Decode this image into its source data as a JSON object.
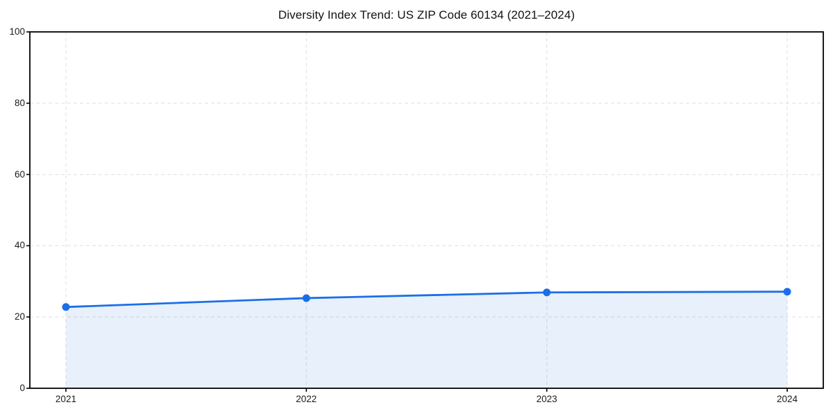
{
  "chart_data": {
    "type": "area",
    "title": "Diversity Index Trend: US ZIP Code 60134 (2021–2024)",
    "xlabel": "",
    "ylabel": "",
    "x": [
      2021,
      2022,
      2023,
      2024
    ],
    "values": [
      22.8,
      25.3,
      26.9,
      27.1
    ],
    "xtick_labels": [
      "2021",
      "2022",
      "2023",
      "2024"
    ],
    "yticks": [
      0,
      20,
      40,
      60,
      80,
      100
    ],
    "ylim": [
      0,
      100
    ],
    "xlim": [
      2020.85,
      2024.15
    ],
    "grid": true,
    "grid_style": "dashed",
    "legend": "none",
    "marker": "circle",
    "colors": {
      "line": "#1b6fe6",
      "marker": "#1b6fe6",
      "fill": "rgba(27,111,230,0.10)",
      "grid": "#e4e4e4",
      "spine": "#000000",
      "tick_text": "#1a1a1a",
      "title_text": "#111111",
      "background": "#ffffff"
    }
  }
}
